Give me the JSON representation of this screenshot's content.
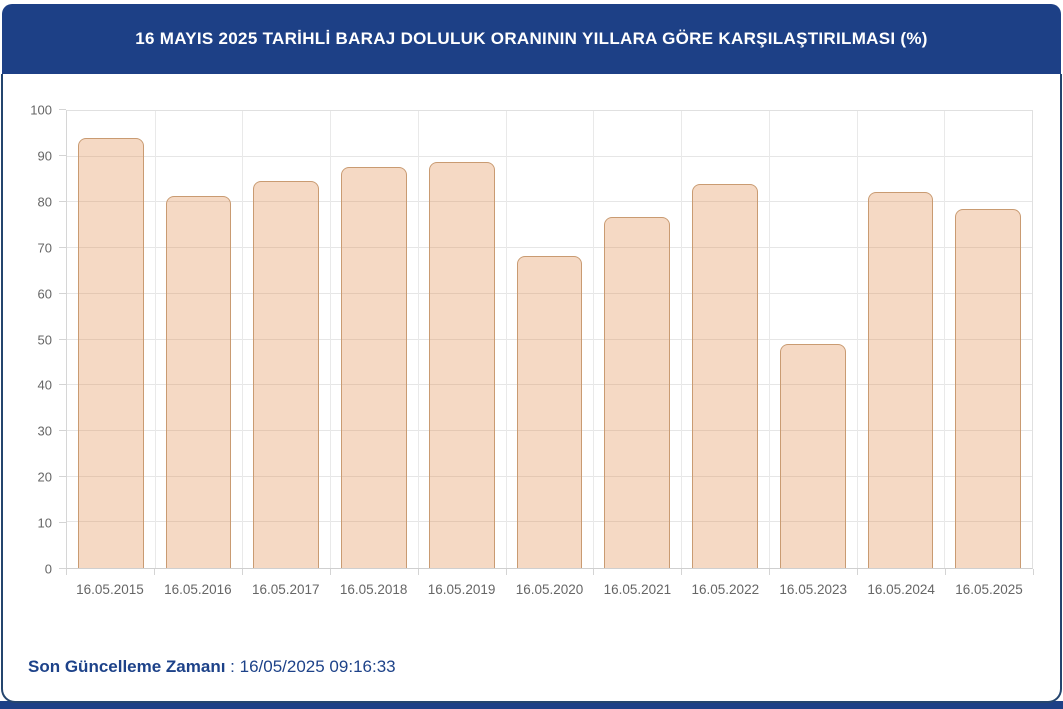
{
  "header": {
    "title": "16 MAYIS 2025 TARİHLİ BARAJ DOLULUK ORANININ YILLARA GÖRE KARŞILAŞTIRILMASI (%)",
    "background_color": "#1d4086",
    "text_color": "#ffffff"
  },
  "chart_data": {
    "type": "bar",
    "title": "16 MAYIS 2025 TARİHLİ BARAJ DOLULUK ORANININ YILLARA GÖRE KARŞILAŞTIRILMASI (%)",
    "categories": [
      "16.05.2015",
      "16.05.2016",
      "16.05.2017",
      "16.05.2018",
      "16.05.2019",
      "16.05.2020",
      "16.05.2021",
      "16.05.2022",
      "16.05.2023",
      "16.05.2024",
      "16.05.2025"
    ],
    "values": [
      94.0,
      81.3,
      84.6,
      87.8,
      88.9,
      68.3,
      76.7,
      84.1,
      49.0,
      82.2,
      78.5
    ],
    "xlabel": "",
    "ylabel": "",
    "ylim": [
      0,
      100
    ],
    "yticks": [
      0,
      10,
      20,
      30,
      40,
      50,
      60,
      70,
      80,
      90,
      100
    ],
    "grid": true,
    "legend": "none",
    "bar_fill": "rgba(224,138,70,0.32)",
    "bar_border": "#c99b72"
  },
  "footer": {
    "label": "Son Güncelleme Zamanı",
    "separator": " : ",
    "value": "16/05/2025 09:16:33"
  }
}
